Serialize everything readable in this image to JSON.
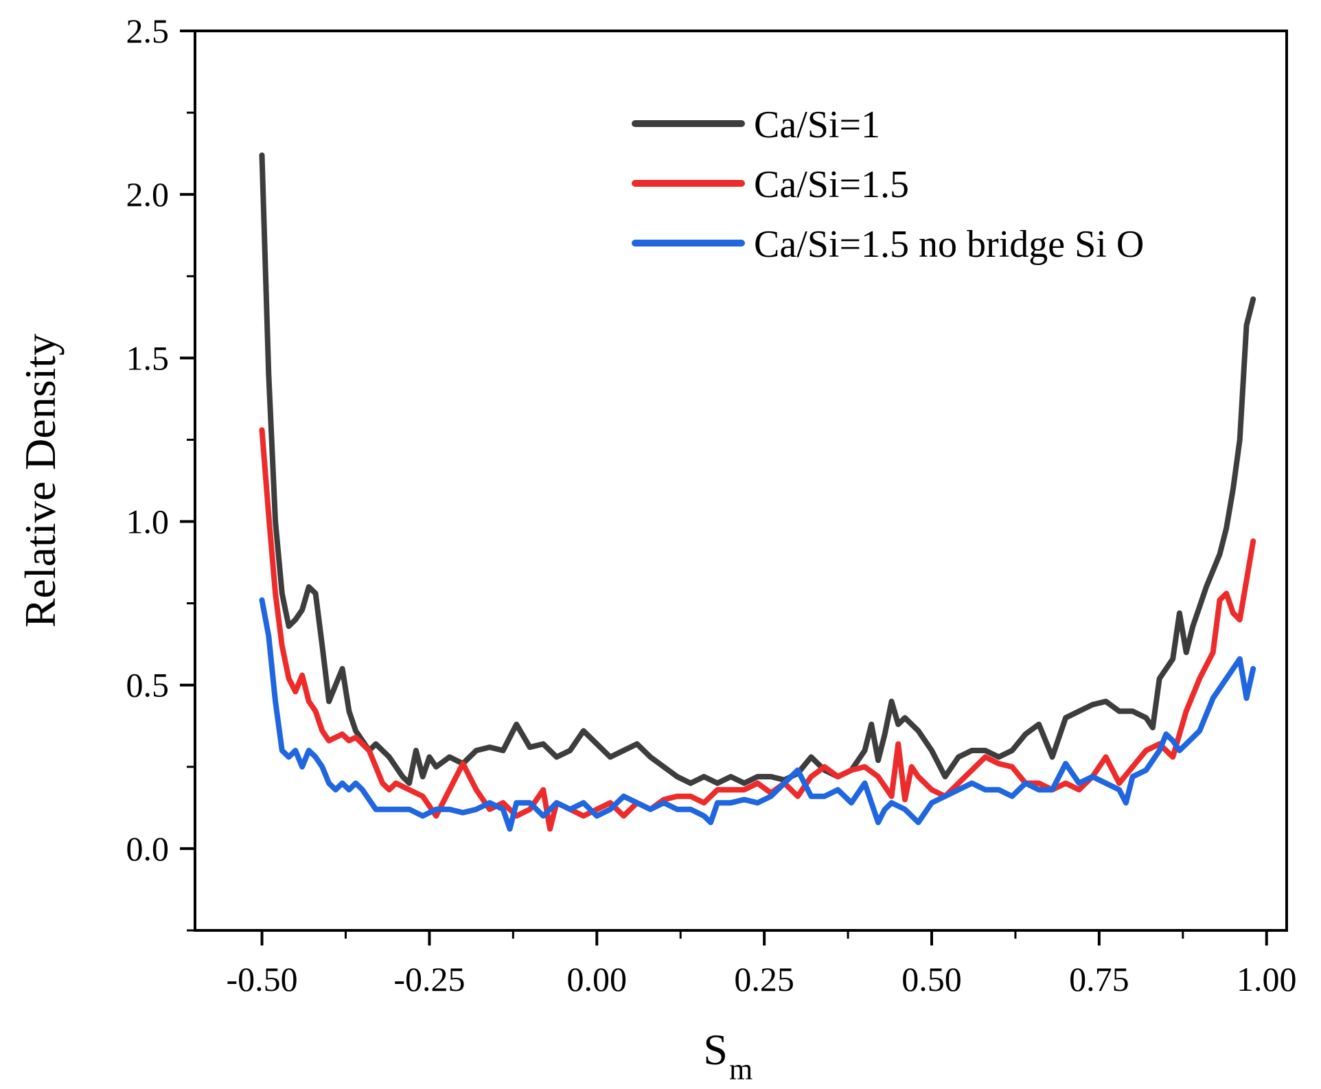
{
  "chart_data": {
    "type": "line",
    "title": "",
    "xlabel": "S",
    "xlabel_sub": "m",
    "ylabel": "Relative Density",
    "xlim": [
      -0.6,
      1.03
    ],
    "ylim": [
      -0.25,
      2.5
    ],
    "x_ticks": [
      -0.5,
      -0.25,
      0.0,
      0.25,
      0.5,
      0.75,
      1.0
    ],
    "x_tick_labels": [
      "-0.50",
      "-0.25",
      "0.00",
      "0.25",
      "0.50",
      "0.75",
      "1.00"
    ],
    "y_ticks": [
      0.0,
      0.5,
      1.0,
      1.5,
      2.0,
      2.5
    ],
    "y_tick_labels": [
      "0.0",
      "0.5",
      "1.0",
      "1.5",
      "2.0",
      "2.5"
    ],
    "legend_position": "top-right",
    "series": [
      {
        "name": "Ca/Si=1",
        "color": "#3d3d3d",
        "line_width": 8,
        "x": [
          -0.5,
          -0.49,
          -0.48,
          -0.47,
          -0.46,
          -0.45,
          -0.44,
          -0.43,
          -0.42,
          -0.41,
          -0.4,
          -0.39,
          -0.38,
          -0.37,
          -0.36,
          -0.35,
          -0.34,
          -0.33,
          -0.32,
          -0.31,
          -0.3,
          -0.29,
          -0.28,
          -0.27,
          -0.26,
          -0.25,
          -0.24,
          -0.22,
          -0.2,
          -0.18,
          -0.16,
          -0.14,
          -0.12,
          -0.1,
          -0.08,
          -0.06,
          -0.04,
          -0.02,
          0.0,
          0.02,
          0.04,
          0.06,
          0.08,
          0.1,
          0.12,
          0.14,
          0.16,
          0.18,
          0.2,
          0.22,
          0.24,
          0.26,
          0.28,
          0.3,
          0.32,
          0.34,
          0.36,
          0.38,
          0.4,
          0.41,
          0.42,
          0.43,
          0.44,
          0.45,
          0.46,
          0.48,
          0.5,
          0.52,
          0.54,
          0.56,
          0.58,
          0.6,
          0.62,
          0.64,
          0.66,
          0.68,
          0.7,
          0.72,
          0.74,
          0.76,
          0.78,
          0.8,
          0.82,
          0.83,
          0.84,
          0.86,
          0.87,
          0.88,
          0.89,
          0.9,
          0.91,
          0.92,
          0.93,
          0.94,
          0.95,
          0.96,
          0.97,
          0.98
        ],
        "y": [
          2.12,
          1.45,
          1.0,
          0.78,
          0.68,
          0.7,
          0.73,
          0.8,
          0.78,
          0.62,
          0.45,
          0.5,
          0.55,
          0.42,
          0.36,
          0.33,
          0.3,
          0.32,
          0.3,
          0.28,
          0.25,
          0.22,
          0.2,
          0.3,
          0.22,
          0.28,
          0.25,
          0.28,
          0.26,
          0.3,
          0.31,
          0.3,
          0.38,
          0.31,
          0.32,
          0.28,
          0.3,
          0.36,
          0.32,
          0.28,
          0.3,
          0.32,
          0.28,
          0.25,
          0.22,
          0.2,
          0.22,
          0.2,
          0.22,
          0.2,
          0.22,
          0.22,
          0.21,
          0.23,
          0.28,
          0.24,
          0.22,
          0.24,
          0.3,
          0.38,
          0.27,
          0.35,
          0.45,
          0.38,
          0.4,
          0.36,
          0.3,
          0.22,
          0.28,
          0.3,
          0.3,
          0.28,
          0.3,
          0.35,
          0.38,
          0.28,
          0.4,
          0.42,
          0.44,
          0.45,
          0.42,
          0.42,
          0.4,
          0.37,
          0.52,
          0.58,
          0.72,
          0.6,
          0.68,
          0.74,
          0.8,
          0.85,
          0.9,
          0.98,
          1.1,
          1.25,
          1.6,
          1.68
        ]
      },
      {
        "name": "Ca/Si=1.5",
        "color": "#ee2b2b",
        "line_width": 8,
        "x": [
          -0.5,
          -0.49,
          -0.48,
          -0.47,
          -0.46,
          -0.45,
          -0.44,
          -0.43,
          -0.42,
          -0.41,
          -0.4,
          -0.39,
          -0.38,
          -0.37,
          -0.36,
          -0.35,
          -0.34,
          -0.33,
          -0.32,
          -0.31,
          -0.3,
          -0.28,
          -0.26,
          -0.24,
          -0.22,
          -0.2,
          -0.18,
          -0.16,
          -0.14,
          -0.12,
          -0.1,
          -0.08,
          -0.07,
          -0.06,
          -0.04,
          -0.02,
          0.0,
          0.02,
          0.04,
          0.06,
          0.08,
          0.1,
          0.12,
          0.14,
          0.16,
          0.18,
          0.2,
          0.22,
          0.24,
          0.26,
          0.28,
          0.3,
          0.32,
          0.34,
          0.36,
          0.38,
          0.4,
          0.42,
          0.44,
          0.45,
          0.46,
          0.47,
          0.48,
          0.5,
          0.52,
          0.54,
          0.56,
          0.58,
          0.6,
          0.62,
          0.64,
          0.66,
          0.68,
          0.7,
          0.72,
          0.74,
          0.76,
          0.78,
          0.8,
          0.82,
          0.84,
          0.86,
          0.88,
          0.9,
          0.92,
          0.93,
          0.94,
          0.95,
          0.96,
          0.97,
          0.98
        ],
        "y": [
          1.28,
          1.02,
          0.78,
          0.62,
          0.52,
          0.48,
          0.53,
          0.45,
          0.42,
          0.36,
          0.33,
          0.34,
          0.35,
          0.33,
          0.34,
          0.32,
          0.3,
          0.25,
          0.2,
          0.18,
          0.2,
          0.18,
          0.16,
          0.1,
          0.18,
          0.26,
          0.18,
          0.12,
          0.14,
          0.1,
          0.12,
          0.18,
          0.06,
          0.14,
          0.12,
          0.1,
          0.12,
          0.14,
          0.1,
          0.14,
          0.12,
          0.15,
          0.16,
          0.16,
          0.14,
          0.18,
          0.18,
          0.18,
          0.2,
          0.17,
          0.2,
          0.16,
          0.22,
          0.25,
          0.22,
          0.24,
          0.25,
          0.22,
          0.16,
          0.32,
          0.15,
          0.25,
          0.22,
          0.18,
          0.16,
          0.2,
          0.24,
          0.28,
          0.26,
          0.25,
          0.2,
          0.2,
          0.18,
          0.2,
          0.18,
          0.22,
          0.28,
          0.2,
          0.25,
          0.3,
          0.32,
          0.28,
          0.42,
          0.52,
          0.6,
          0.76,
          0.78,
          0.72,
          0.7,
          0.82,
          0.94
        ]
      },
      {
        "name": "Ca/Si=1.5 no bridge Si O",
        "color": "#1f66e0",
        "line_width": 8,
        "x": [
          -0.5,
          -0.49,
          -0.48,
          -0.47,
          -0.46,
          -0.45,
          -0.44,
          -0.43,
          -0.42,
          -0.41,
          -0.4,
          -0.39,
          -0.38,
          -0.37,
          -0.36,
          -0.35,
          -0.34,
          -0.33,
          -0.32,
          -0.3,
          -0.28,
          -0.26,
          -0.24,
          -0.22,
          -0.2,
          -0.18,
          -0.16,
          -0.14,
          -0.13,
          -0.12,
          -0.1,
          -0.08,
          -0.06,
          -0.04,
          -0.02,
          0.0,
          0.02,
          0.04,
          0.06,
          0.08,
          0.1,
          0.12,
          0.14,
          0.16,
          0.17,
          0.18,
          0.2,
          0.22,
          0.24,
          0.26,
          0.28,
          0.3,
          0.32,
          0.34,
          0.36,
          0.38,
          0.4,
          0.42,
          0.43,
          0.44,
          0.46,
          0.48,
          0.5,
          0.52,
          0.54,
          0.56,
          0.58,
          0.6,
          0.62,
          0.64,
          0.66,
          0.68,
          0.7,
          0.72,
          0.74,
          0.76,
          0.78,
          0.79,
          0.8,
          0.82,
          0.84,
          0.85,
          0.86,
          0.87,
          0.88,
          0.9,
          0.92,
          0.94,
          0.96,
          0.97,
          0.98
        ],
        "y": [
          0.76,
          0.65,
          0.45,
          0.3,
          0.28,
          0.3,
          0.25,
          0.3,
          0.28,
          0.25,
          0.2,
          0.18,
          0.2,
          0.18,
          0.2,
          0.18,
          0.15,
          0.12,
          0.12,
          0.12,
          0.12,
          0.1,
          0.12,
          0.12,
          0.11,
          0.12,
          0.14,
          0.12,
          0.06,
          0.14,
          0.14,
          0.1,
          0.14,
          0.12,
          0.14,
          0.1,
          0.12,
          0.16,
          0.14,
          0.12,
          0.14,
          0.12,
          0.12,
          0.1,
          0.08,
          0.14,
          0.14,
          0.15,
          0.14,
          0.16,
          0.2,
          0.24,
          0.16,
          0.16,
          0.18,
          0.14,
          0.2,
          0.08,
          0.12,
          0.14,
          0.12,
          0.08,
          0.14,
          0.16,
          0.18,
          0.2,
          0.18,
          0.18,
          0.16,
          0.2,
          0.18,
          0.18,
          0.26,
          0.2,
          0.22,
          0.2,
          0.18,
          0.14,
          0.22,
          0.24,
          0.3,
          0.35,
          0.33,
          0.3,
          0.32,
          0.36,
          0.46,
          0.52,
          0.58,
          0.46,
          0.55
        ]
      }
    ]
  }
}
